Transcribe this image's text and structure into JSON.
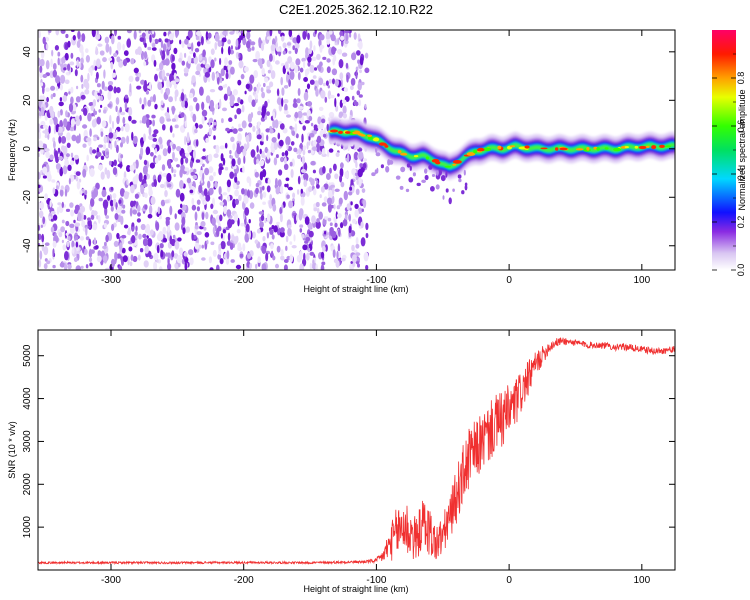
{
  "title": "C2E1.2025.362.12.10.R22",
  "chart_data": [
    {
      "type": "heatmap",
      "title": "C2E1.2025.362.12.10.R22",
      "xlabel": "Height of straight line (km)",
      "ylabel": "Frequency (Hz)",
      "xlim": [
        -355,
        125
      ],
      "ylim": [
        -50,
        49
      ],
      "xticks": [
        -300,
        -200,
        -100,
        0,
        100
      ],
      "yticks": [
        -40,
        -20,
        0,
        20,
        40
      ],
      "noise_region_x": [
        -355,
        -110
      ],
      "track": {
        "x": [
          -135,
          -120,
          -105,
          -95,
          -85,
          -75,
          -65,
          -55,
          -45,
          -35,
          -25,
          -15,
          -5,
          5,
          20,
          40,
          60,
          80,
          100,
          125
        ],
        "freq": [
          7,
          7,
          5,
          2,
          -1,
          -3,
          -3,
          -5,
          -8,
          -4,
          -1,
          0,
          0,
          1,
          0,
          0,
          0,
          0,
          1,
          1
        ]
      },
      "colorbar": {
        "label": "Normalized spectral amplitude",
        "range": [
          0,
          1
        ],
        "ticks": [
          0.0,
          0.2,
          0.4,
          0.6,
          0.8
        ],
        "tick_labels": [
          "0.0",
          "0.2",
          "0.4",
          "0.6",
          "0.8"
        ]
      }
    },
    {
      "type": "line",
      "xlabel": "Height of straight line (km)",
      "ylabel": "SNR (10 * v/v)",
      "xlim": [
        -355,
        125
      ],
      "ylim": [
        0,
        5600
      ],
      "xticks": [
        -300,
        -200,
        -100,
        0,
        100
      ],
      "yticks": [
        1000,
        2000,
        3000,
        4000,
        5000
      ],
      "series": [
        {
          "name": "SNR",
          "color": "#f03030",
          "x": [
            -355,
            -300,
            -250,
            -200,
            -150,
            -110,
            -100,
            -95,
            -90,
            -85,
            -80,
            -75,
            -70,
            -65,
            -60,
            -55,
            -50,
            -45,
            -40,
            -35,
            -30,
            -25,
            -20,
            -15,
            -10,
            -5,
            0,
            5,
            10,
            15,
            20,
            25,
            30,
            35,
            40,
            50,
            60,
            70,
            80,
            90,
            100,
            110,
            125
          ],
          "y": [
            170,
            170,
            170,
            175,
            170,
            190,
            220,
            330,
            600,
            850,
            1050,
            900,
            700,
            1100,
            900,
            600,
            800,
            1200,
            1700,
            2200,
            2600,
            2800,
            3000,
            3200,
            3400,
            3500,
            3700,
            3900,
            4200,
            4500,
            4800,
            5000,
            5200,
            5300,
            5350,
            5300,
            5250,
            5250,
            5200,
            5200,
            5150,
            5100,
            5150
          ],
          "noise": [
            25,
            25,
            25,
            25,
            25,
            30,
            60,
            150,
            400,
            600,
            700,
            700,
            500,
            600,
            600,
            450,
            500,
            500,
            650,
            700,
            750,
            700,
            700,
            700,
            700,
            700,
            650,
            600,
            500,
            400,
            300,
            220,
            150,
            110,
            90,
            80,
            80,
            80,
            80,
            80,
            80,
            80,
            80
          ]
        }
      ]
    }
  ]
}
